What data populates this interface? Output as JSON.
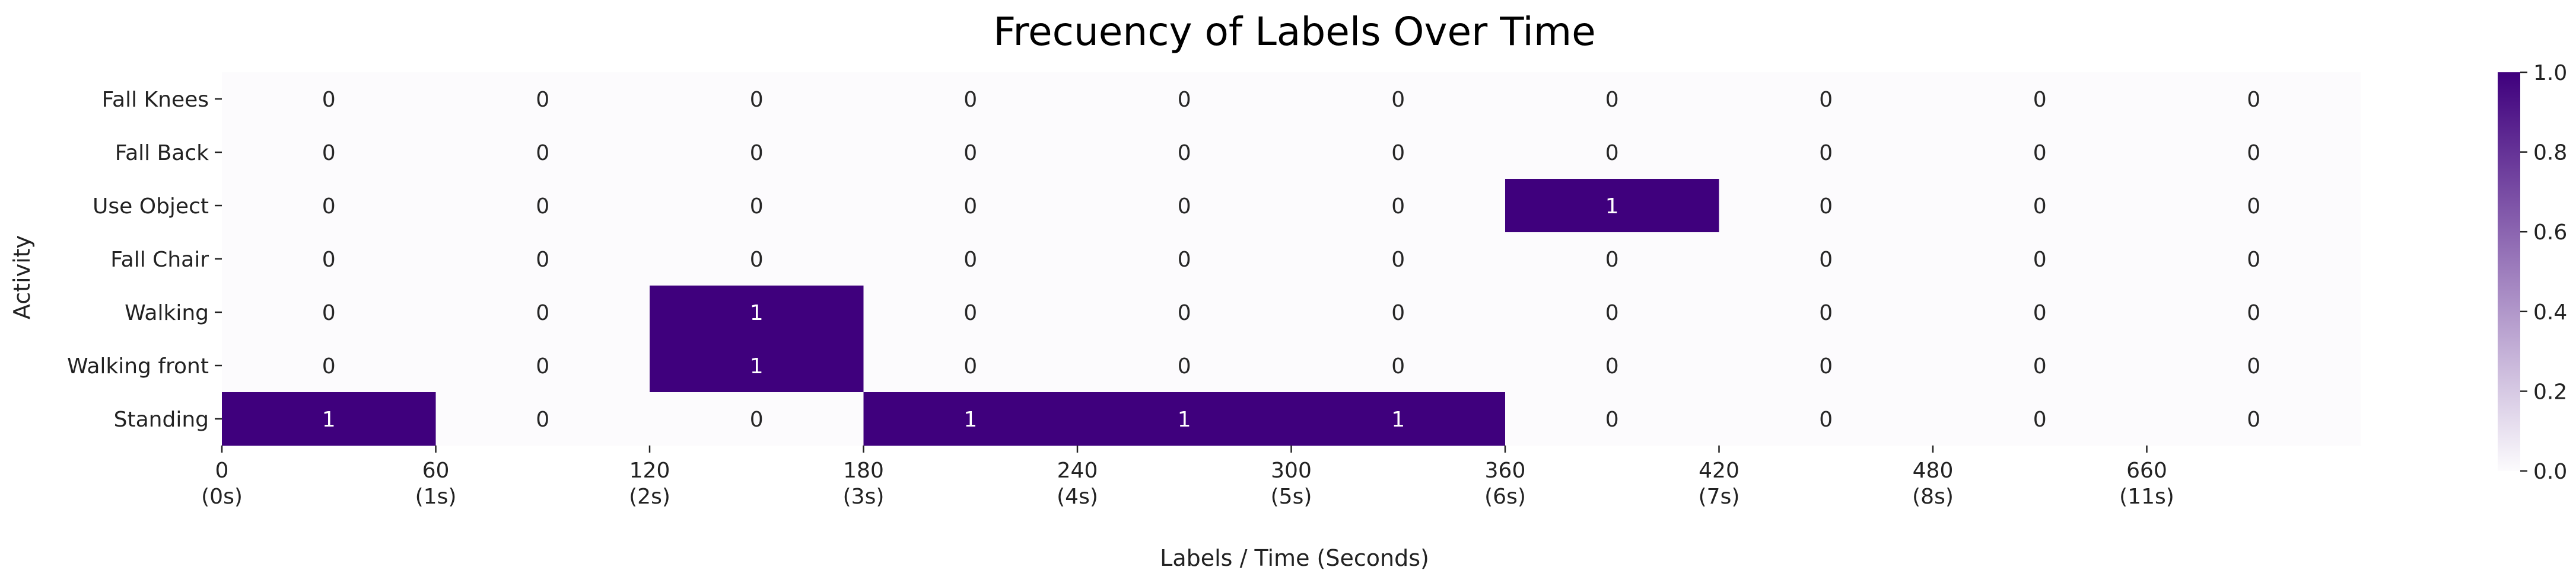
{
  "chart_data": {
    "type": "heatmap",
    "title": "Frecuency of Labels Over Time",
    "xlabel": "Labels / Time (Seconds)",
    "ylabel": "Activity",
    "rows": [
      "Fall Knees",
      "Fall Back",
      "Use Object",
      "Fall Chair",
      "Walking",
      "Walking front",
      "Standing"
    ],
    "x_ticks": [
      {
        "value": "0",
        "time": "(0s)"
      },
      {
        "value": "60",
        "time": "(1s)"
      },
      {
        "value": "120",
        "time": "(2s)"
      },
      {
        "value": "180",
        "time": "(3s)"
      },
      {
        "value": "240",
        "time": "(4s)"
      },
      {
        "value": "300",
        "time": "(5s)"
      },
      {
        "value": "360",
        "time": "(6s)"
      },
      {
        "value": "420",
        "time": "(7s)"
      },
      {
        "value": "480",
        "time": "(8s)"
      },
      {
        "value": "660",
        "time": "(11s)"
      }
    ],
    "values": [
      [
        0,
        0,
        0,
        0,
        0,
        0,
        0,
        0,
        0,
        0
      ],
      [
        0,
        0,
        0,
        0,
        0,
        0,
        0,
        0,
        0,
        0
      ],
      [
        0,
        0,
        0,
        0,
        0,
        0,
        1,
        0,
        0,
        0
      ],
      [
        0,
        0,
        0,
        0,
        0,
        0,
        0,
        0,
        0,
        0
      ],
      [
        0,
        0,
        1,
        0,
        0,
        0,
        0,
        0,
        0,
        0
      ],
      [
        0,
        0,
        1,
        0,
        0,
        0,
        0,
        0,
        0,
        0
      ],
      [
        1,
        0,
        0,
        1,
        1,
        1,
        0,
        0,
        0,
        0
      ]
    ],
    "colorbar": {
      "range": [
        0.0,
        1.0
      ],
      "ticks": [
        "0.0",
        "0.2",
        "0.4",
        "0.6",
        "0.8",
        "1.0"
      ],
      "low_color": "#fcfbfd",
      "high_color": "#3f007d"
    },
    "grid": false,
    "legend": "colorbar-right"
  }
}
